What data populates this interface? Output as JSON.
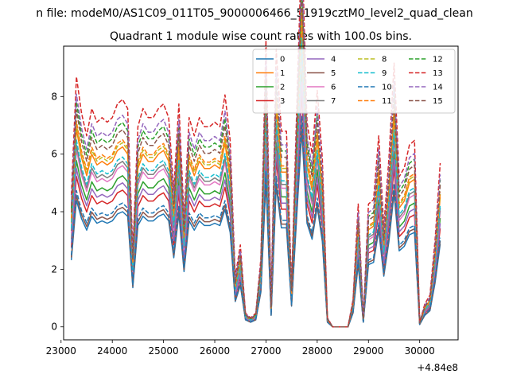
{
  "chart_data": {
    "type": "line",
    "suptitle": "n file: modeM0/AS1C09_011T05_9000006466_51919cztM0_level2_quad_clean",
    "title": "Quadrant 1 module wise count rates with 100.0s bins.",
    "xlabel": "",
    "ylabel": "",
    "x_offset_label": "+4.84e8",
    "xlim": [
      23050,
      30750
    ],
    "ylim": [
      -0.45,
      9.75
    ],
    "xticks": [
      {
        "value": 23000,
        "label": "23000"
      },
      {
        "value": 24000,
        "label": "24000"
      },
      {
        "value": 25000,
        "label": "25000"
      },
      {
        "value": 26000,
        "label": "26000"
      },
      {
        "value": 27000,
        "label": "27000"
      },
      {
        "value": 28000,
        "label": "28000"
      },
      {
        "value": 29000,
        "label": "29000"
      },
      {
        "value": 30000,
        "label": "30000"
      }
    ],
    "yticks": [
      {
        "value": 0,
        "label": "0"
      },
      {
        "value": 2,
        "label": "2"
      },
      {
        "value": 4,
        "label": "4"
      },
      {
        "value": 6,
        "label": "6"
      },
      {
        "value": 8,
        "label": "8"
      }
    ],
    "grid": false,
    "legend_position": "top-right",
    "legend_columns": 4,
    "x": [
      23200,
      23300,
      23400,
      23500,
      23600,
      23700,
      23800,
      23900,
      24000,
      24100,
      24200,
      24300,
      24400,
      24500,
      24600,
      24700,
      24800,
      24900,
      25000,
      25100,
      25200,
      25300,
      25400,
      25500,
      25600,
      25700,
      25800,
      25900,
      26000,
      26100,
      26200,
      26300,
      26400,
      26500,
      26600,
      26700,
      26800,
      26900,
      27000,
      27100,
      27200,
      27300,
      27400,
      27500,
      27600,
      27700,
      27800,
      27900,
      28000,
      28100,
      28200,
      28300,
      28400,
      28500,
      28600,
      28700,
      28800,
      28900,
      29000,
      29100,
      29200,
      29300,
      29400,
      29500,
      29600,
      29700,
      29800,
      29900,
      30000,
      30100,
      30200,
      30300,
      30400
    ],
    "base": [
      2.9,
      5.5,
      4.7,
      4.2,
      4.8,
      4.5,
      4.6,
      4.5,
      4.6,
      4.9,
      5.0,
      4.8,
      1.7,
      4.4,
      4.8,
      4.6,
      4.6,
      4.8,
      4.9,
      4.6,
      3.0,
      4.9,
      2.4,
      4.6,
      4.2,
      4.6,
      4.4,
      4.4,
      4.5,
      4.4,
      5.1,
      4.1,
      1.1,
      1.8,
      0.3,
      0.2,
      0.3,
      1.5,
      6.3,
      0.5,
      6.1,
      4.3,
      4.3,
      0.9,
      4.8,
      8.5,
      4.5,
      3.8,
      5.2,
      3.7,
      0.2,
      0.0,
      0.0,
      0.0,
      0.0,
      0.6,
      2.7,
      0.2,
      2.7,
      2.8,
      4.2,
      2.2,
      3.7,
      5.8,
      3.3,
      3.5,
      4.0,
      4.1,
      0.1,
      0.5,
      0.7,
      1.9,
      3.6
    ],
    "series": [
      {
        "name": "0",
        "color": "#1f77b4",
        "style": "solid",
        "scale": 0.8
      },
      {
        "name": "1",
        "color": "#ff7f0e",
        "style": "solid",
        "scale": 1.25
      },
      {
        "name": "2",
        "color": "#2ca02c",
        "style": "solid",
        "scale": 1.05
      },
      {
        "name": "3",
        "color": "#d62728",
        "style": "solid",
        "scale": 0.95
      },
      {
        "name": "4",
        "color": "#9467bd",
        "style": "solid",
        "scale": 1.0
      },
      {
        "name": "5",
        "color": "#8c564b",
        "style": "solid",
        "scale": 0.83
      },
      {
        "name": "6",
        "color": "#e377c2",
        "style": "solid",
        "scale": 1.12
      },
      {
        "name": "7",
        "color": "#7f7f7f",
        "style": "solid",
        "scale": 1.15
      },
      {
        "name": "8",
        "color": "#bcbd22",
        "style": "dashed",
        "scale": 1.28
      },
      {
        "name": "9",
        "color": "#17becf",
        "style": "dashed",
        "scale": 1.18
      },
      {
        "name": "10",
        "color": "#1f77b4",
        "style": "dashed",
        "scale": 0.86
      },
      {
        "name": "11",
        "color": "#ff7f0e",
        "style": "dashed",
        "scale": 1.3
      },
      {
        "name": "12",
        "color": "#2ca02c",
        "style": "dashed",
        "scale": 1.42
      },
      {
        "name": "13",
        "color": "#d62728",
        "style": "dashed",
        "scale": 1.58
      },
      {
        "name": "14",
        "color": "#9467bd",
        "style": "dashed",
        "scale": 1.47
      },
      {
        "name": "15",
        "color": "#8c564b",
        "style": "dashed",
        "scale": 1.37
      }
    ]
  }
}
